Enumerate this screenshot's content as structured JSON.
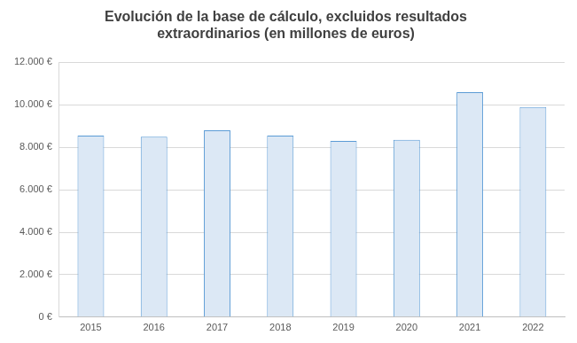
{
  "chart_data": {
    "type": "bar",
    "title": [
      "Evolución de la base de cálculo, excluidos resultados",
      "extraordinarios (en millones de euros)"
    ],
    "categories": [
      "2015",
      "2016",
      "2017",
      "2018",
      "2019",
      "2020",
      "2021",
      "2022"
    ],
    "values": [
      8550,
      8500,
      8800,
      8550,
      8300,
      8350,
      10600,
      9900
    ],
    "color": "#dce8f5",
    "ylim": [
      0,
      12000
    ],
    "yticks": [
      {
        "value": 0,
        "label": "0 €"
      },
      {
        "value": 2000,
        "label": "2.000 €"
      },
      {
        "value": 4000,
        "label": "4.000 €"
      },
      {
        "value": 6000,
        "label": "6.000 €"
      },
      {
        "value": 8000,
        "label": "8.000 €"
      },
      {
        "value": 10000,
        "label": "10.000 €"
      },
      {
        "value": 12000,
        "label": "12.000 €"
      }
    ],
    "grid": true
  }
}
